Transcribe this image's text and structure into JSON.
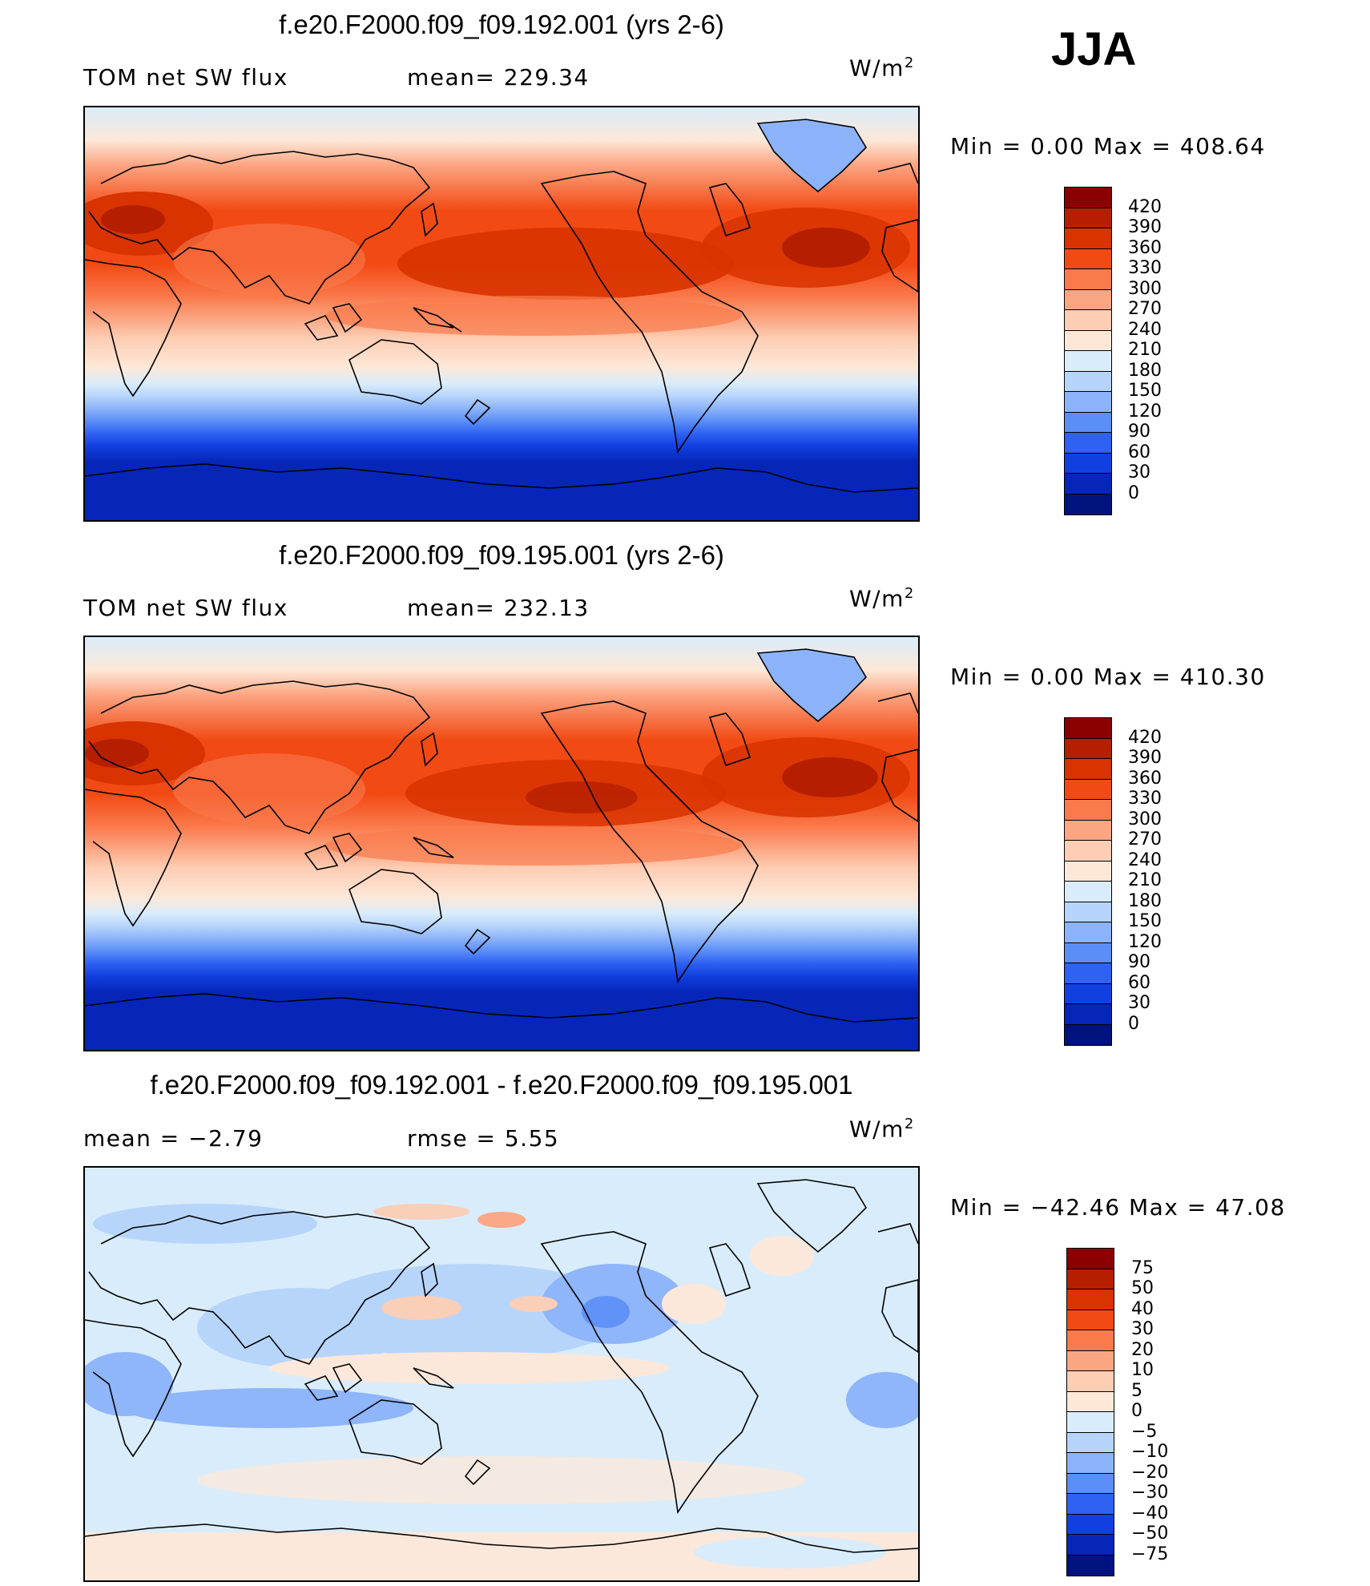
{
  "season": "JJA",
  "units_text": "W/m",
  "units_sup": "2",
  "panels": [
    {
      "title": "f.e20.F2000.f09_f09.192.001 (yrs 2-6)",
      "left_label": "TOM net SW flux",
      "mid_label": "mean=  229.34",
      "minmax": "Min  =      0.00  Max  =  408.64",
      "levels": [
        "420",
        "390",
        "360",
        "330",
        "300",
        "270",
        "240",
        "210",
        "180",
        "150",
        "120",
        "90",
        "60",
        "30",
        "0"
      ],
      "kind": "field"
    },
    {
      "title": "f.e20.F2000.f09_f09.195.001 (yrs 2-6)",
      "left_label": "TOM net SW flux",
      "mid_label": "mean=  232.13",
      "minmax": "Min  =      0.00  Max  =  410.30",
      "levels": [
        "420",
        "390",
        "360",
        "330",
        "300",
        "270",
        "240",
        "210",
        "180",
        "150",
        "120",
        "90",
        "60",
        "30",
        "0"
      ],
      "kind": "field"
    },
    {
      "title": "f.e20.F2000.f09_f09.192.001 - f.e20.F2000.f09_f09.195.001",
      "left_label": "mean  =    −2.79",
      "mid_label": "rmse  =     5.55",
      "minmax": "Min  = −42.46  Max  =    47.08",
      "levels": [
        "75",
        "50",
        "40",
        "30",
        "20",
        "10",
        "5",
        "0",
        "−5",
        "−10",
        "−20",
        "−30",
        "−40",
        "−50",
        "−75"
      ],
      "kind": "diff"
    }
  ],
  "colors": {
    "field_scale": [
      "#8b0000",
      "#b51f00",
      "#d83300",
      "#f24a14",
      "#fa7a4c",
      "#fca582",
      "#fdcdb4",
      "#fde8d8",
      "#d9ecfb",
      "#b6d4fb",
      "#8cb3fa",
      "#5b8ef7",
      "#2f62f2",
      "#1240e0",
      "#0526b8",
      "#00127e"
    ],
    "diff_scale": [
      "#8b0000",
      "#b51f00",
      "#d83300",
      "#f24a14",
      "#fa7a4c",
      "#fca582",
      "#fdcdb4",
      "#fde8d8",
      "#d9ecfb",
      "#b6d4fb",
      "#8cb3fa",
      "#5b8ef7",
      "#2f62f2",
      "#1240e0",
      "#0526b8",
      "#00127e"
    ]
  }
}
